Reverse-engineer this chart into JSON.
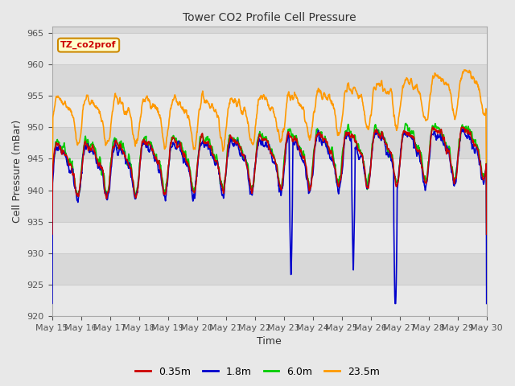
{
  "title": "Tower CO2 Profile Cell Pressure",
  "xlabel": "Time",
  "ylabel": "Cell Pressure (mBar)",
  "ylim": [
    920,
    966
  ],
  "yticks": [
    920,
    925,
    930,
    935,
    940,
    945,
    950,
    955,
    960,
    965
  ],
  "fig_bg_color": "#e8e8e8",
  "plot_bg_color": "#d8d8d8",
  "band_color_light": "#e8e8e8",
  "band_color_dark": "#d8d8d8",
  "series_colors": [
    "#cc0000",
    "#0000cc",
    "#00cc00",
    "#ff9900"
  ],
  "series_labels": [
    "0.35m",
    "1.8m",
    "6.0m",
    "23.5m"
  ],
  "annotation_text": "TZ_co2prof",
  "annotation_bg": "#ffffcc",
  "annotation_border": "#cc8800",
  "annotation_text_color": "#cc0000",
  "grid_color": "#cccccc",
  "start_day": 15,
  "end_day": 30
}
